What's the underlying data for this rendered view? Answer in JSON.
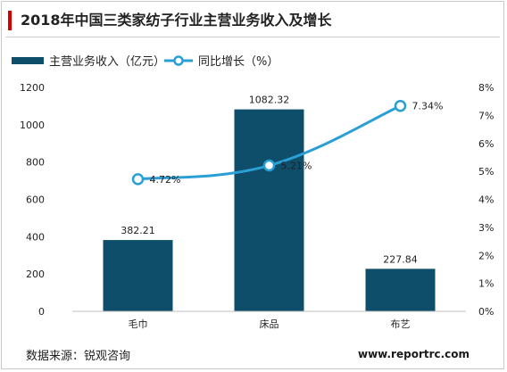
{
  "title": "2018年中国三类家纺子行业主营业务收入及增长",
  "source": "数据来源：锐观咨询",
  "website": "www.reportrc.com",
  "colors": {
    "bar": "#0e4e6b",
    "line": "#2a9fd6",
    "title_accent": "#d40000"
  },
  "chart_data": {
    "type": "bar",
    "categories": [
      "毛巾",
      "床品",
      "布艺"
    ],
    "series": [
      {
        "name": "主营业务收入（亿元）",
        "type": "bar",
        "axis": "left",
        "values": [
          382.21,
          1082.32,
          227.84
        ],
        "labels": [
          "382.21",
          "1082.32",
          "227.84"
        ]
      },
      {
        "name": "同比增长（%）",
        "type": "line",
        "axis": "right",
        "values": [
          4.72,
          5.21,
          7.34
        ],
        "labels": [
          "4.72%",
          "5.21%",
          "7.34%"
        ]
      }
    ],
    "y_left": {
      "min": 0,
      "max": 1200,
      "ticks": [
        0,
        200,
        400,
        600,
        800,
        1000,
        1200
      ],
      "tick_labels": [
        "0",
        "200",
        "400",
        "600",
        "800",
        "1000",
        "1200"
      ]
    },
    "y_right": {
      "min": 0,
      "max": 8,
      "ticks": [
        0,
        1,
        2,
        3,
        4,
        5,
        6,
        7,
        8
      ],
      "tick_labels": [
        "0%",
        "1%",
        "2%",
        "3%",
        "4%",
        "5%",
        "6%",
        "7%",
        "8%"
      ]
    },
    "grid": false,
    "legend_position": "top-left"
  }
}
